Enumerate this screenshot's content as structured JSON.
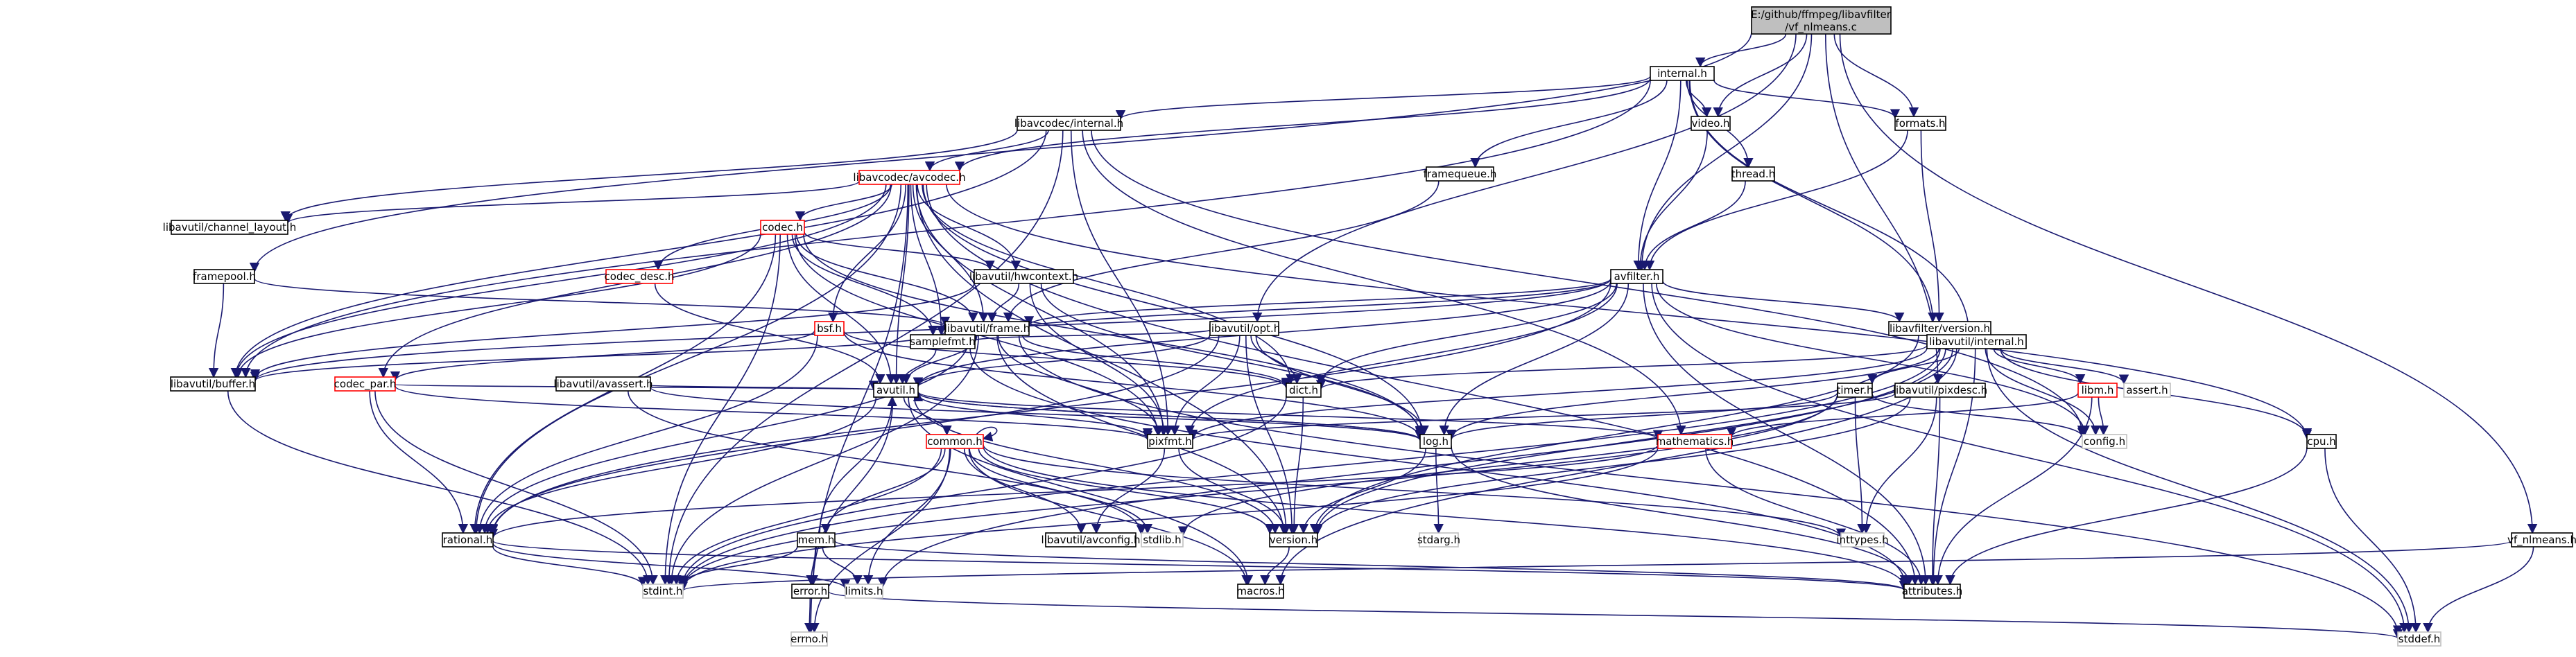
{
  "root": {
    "lines": [
      "E:/github/ffmpeg/libavfilter",
      "/vf_nlmeans.c"
    ]
  },
  "nodes": [
    {
      "id": "internal_h",
      "label": "internal.h",
      "style": "normal"
    },
    {
      "id": "video_h",
      "label": "video.h",
      "style": "normal"
    },
    {
      "id": "formats_h",
      "label": "formats.h",
      "style": "normal"
    },
    {
      "id": "lavc_internal_h",
      "label": "libavcodec/internal.h",
      "style": "normal"
    },
    {
      "id": "framequeue_h",
      "label": "framequeue.h",
      "style": "normal"
    },
    {
      "id": "thread_h",
      "label": "thread.h",
      "style": "normal"
    },
    {
      "id": "avcodec_h",
      "label": "libavcodec/avcodec.h",
      "style": "red"
    },
    {
      "id": "channel_layout_h",
      "label": "libavutil/channel_layout.h",
      "style": "normal"
    },
    {
      "id": "codec_h",
      "label": "codec.h",
      "style": "red"
    },
    {
      "id": "codec_desc_h",
      "label": "codec_desc.h",
      "style": "red"
    },
    {
      "id": "hwcontext_h",
      "label": "libavutil/hwcontext.h",
      "style": "normal"
    },
    {
      "id": "framepool_h",
      "label": "framepool.h",
      "style": "normal"
    },
    {
      "id": "avfilter_h",
      "label": "avfilter.h",
      "style": "normal"
    },
    {
      "id": "bsf_h",
      "label": "bsf.h",
      "style": "red"
    },
    {
      "id": "frame_h",
      "label": "libavutil/frame.h",
      "style": "normal"
    },
    {
      "id": "opt_h",
      "label": "libavutil/opt.h",
      "style": "normal"
    },
    {
      "id": "filter_version_h",
      "label": "libavfilter/version.h",
      "style": "normal"
    },
    {
      "id": "buffer_h",
      "label": "libavutil/buffer.h",
      "style": "normal"
    },
    {
      "id": "codec_par_h",
      "label": "codec_par.h",
      "style": "red"
    },
    {
      "id": "avassert_h",
      "label": "libavutil/avassert.h",
      "style": "normal"
    },
    {
      "id": "samplefmt_h",
      "label": "samplefmt.h",
      "style": "normal"
    },
    {
      "id": "avutil_h",
      "label": "avutil.h",
      "style": "normal"
    },
    {
      "id": "dict_h",
      "label": "dict.h",
      "style": "normal"
    },
    {
      "id": "util_internal_h",
      "label": "libavutil/internal.h",
      "style": "normal"
    },
    {
      "id": "timer_h",
      "label": "timer.h",
      "style": "normal"
    },
    {
      "id": "pixdesc_h",
      "label": "libavutil/pixdesc.h",
      "style": "normal"
    },
    {
      "id": "libm_h",
      "label": "libm.h",
      "style": "red"
    },
    {
      "id": "assert_h",
      "label": "assert.h",
      "style": "grey"
    },
    {
      "id": "common_h",
      "label": "common.h",
      "style": "red"
    },
    {
      "id": "pixfmt_h",
      "label": "pixfmt.h",
      "style": "normal"
    },
    {
      "id": "log_h",
      "label": "log.h",
      "style": "normal"
    },
    {
      "id": "mathematics_h",
      "label": "mathematics.h",
      "style": "red"
    },
    {
      "id": "config_h",
      "label": "config.h",
      "style": "grey"
    },
    {
      "id": "cpu_h",
      "label": "cpu.h",
      "style": "normal"
    },
    {
      "id": "rational_h",
      "label": "rational.h",
      "style": "normal"
    },
    {
      "id": "mem_h",
      "label": "mem.h",
      "style": "normal"
    },
    {
      "id": "avconfig_h",
      "label": "libavutil/avconfig.h",
      "style": "normal"
    },
    {
      "id": "stdlib_h",
      "label": "stdlib.h",
      "style": "grey"
    },
    {
      "id": "version_h",
      "label": "version.h",
      "style": "normal"
    },
    {
      "id": "stdarg_h",
      "label": "stdarg.h",
      "style": "grey"
    },
    {
      "id": "inttypes_h",
      "label": "inttypes.h",
      "style": "grey"
    },
    {
      "id": "vf_nlmeans_h",
      "label": "vf_nlmeans.h",
      "style": "normal"
    },
    {
      "id": "stdint_h",
      "label": "stdint.h",
      "style": "grey"
    },
    {
      "id": "error_h",
      "label": "error.h",
      "style": "normal"
    },
    {
      "id": "limits_h",
      "label": "limits.h",
      "style": "grey"
    },
    {
      "id": "macros_h",
      "label": "macros.h",
      "style": "normal"
    },
    {
      "id": "attributes_h",
      "label": "attributes.h",
      "style": "normal"
    },
    {
      "id": "errno_h",
      "label": "errno.h",
      "style": "grey"
    },
    {
      "id": "stddef_h",
      "label": "stddef.h",
      "style": "grey"
    }
  ],
  "edges": [
    [
      "root",
      "internal_h"
    ],
    [
      "root",
      "video_h"
    ],
    [
      "root",
      "formats_h"
    ],
    [
      "root",
      "avfilter_h"
    ],
    [
      "root",
      "opt_h"
    ],
    [
      "root",
      "pixdesc_h"
    ],
    [
      "root",
      "vf_nlmeans_h"
    ],
    [
      "root",
      "framepool_h"
    ],
    [
      "internal_h",
      "video_h"
    ],
    [
      "internal_h",
      "formats_h"
    ],
    [
      "internal_h",
      "lavc_internal_h"
    ],
    [
      "internal_h",
      "framequeue_h"
    ],
    [
      "internal_h",
      "thread_h"
    ],
    [
      "internal_h",
      "avfilter_h"
    ],
    [
      "internal_h",
      "avcodec_h"
    ],
    [
      "internal_h",
      "filter_version_h"
    ],
    [
      "internal_h",
      "util_internal_h"
    ],
    [
      "internal_h",
      "buffer_h"
    ],
    [
      "video_h",
      "avfilter_h"
    ],
    [
      "formats_h",
      "avfilter_h"
    ],
    [
      "formats_h",
      "filter_version_h"
    ],
    [
      "thread_h",
      "avfilter_h"
    ],
    [
      "framequeue_h",
      "frame_h"
    ],
    [
      "lavc_internal_h",
      "avcodec_h"
    ],
    [
      "lavc_internal_h",
      "channel_layout_h"
    ],
    [
      "lavc_internal_h",
      "buffer_h"
    ],
    [
      "lavc_internal_h",
      "pixfmt_h"
    ],
    [
      "lavc_internal_h",
      "mathematics_h"
    ],
    [
      "lavc_internal_h",
      "stdint_h"
    ],
    [
      "lavc_internal_h",
      "config_h"
    ],
    [
      "avcodec_h",
      "channel_layout_h"
    ],
    [
      "avcodec_h",
      "codec_h"
    ],
    [
      "avcodec_h",
      "codec_desc_h"
    ],
    [
      "avcodec_h",
      "hwcontext_h"
    ],
    [
      "avcodec_h",
      "bsf_h"
    ],
    [
      "avcodec_h",
      "frame_h"
    ],
    [
      "avcodec_h",
      "samplefmt_h"
    ],
    [
      "avcodec_h",
      "avutil_h"
    ],
    [
      "avcodec_h",
      "dict_h"
    ],
    [
      "avcodec_h",
      "pixfmt_h"
    ],
    [
      "avcodec_h",
      "log_h"
    ],
    [
      "avcodec_h",
      "codec_par_h"
    ],
    [
      "avcodec_h",
      "rational_h"
    ],
    [
      "avcodec_h",
      "attributes_h"
    ],
    [
      "avcodec_h",
      "cpu_h"
    ],
    [
      "avcodec_h",
      "errno_h"
    ],
    [
      "avcodec_h",
      "version_h"
    ],
    [
      "avcodec_h",
      "buffer_h"
    ],
    [
      "codec_h",
      "hwcontext_h"
    ],
    [
      "codec_h",
      "buffer_h"
    ],
    [
      "codec_h",
      "frame_h"
    ],
    [
      "codec_h",
      "samplefmt_h"
    ],
    [
      "codec_h",
      "avutil_h"
    ],
    [
      "codec_h",
      "log_h"
    ],
    [
      "codec_h",
      "pixfmt_h"
    ],
    [
      "codec_h",
      "rational_h"
    ],
    [
      "codec_h",
      "stdint_h"
    ],
    [
      "codec_desc_h",
      "avutil_h"
    ],
    [
      "hwcontext_h",
      "buffer_h"
    ],
    [
      "hwcontext_h",
      "frame_h"
    ],
    [
      "hwcontext_h",
      "log_h"
    ],
    [
      "hwcontext_h",
      "pixfmt_h"
    ],
    [
      "framepool_h",
      "buffer_h"
    ],
    [
      "framepool_h",
      "frame_h"
    ],
    [
      "avfilter_h",
      "frame_h"
    ],
    [
      "avfilter_h",
      "filter_version_h"
    ],
    [
      "avfilter_h",
      "avutil_h"
    ],
    [
      "avfilter_h",
      "buffer_h"
    ],
    [
      "avfilter_h",
      "dict_h"
    ],
    [
      "avfilter_h",
      "log_h"
    ],
    [
      "avfilter_h",
      "pixfmt_h"
    ],
    [
      "avfilter_h",
      "samplefmt_h"
    ],
    [
      "avfilter_h",
      "rational_h"
    ],
    [
      "avfilter_h",
      "attributes_h"
    ],
    [
      "avfilter_h",
      "stddef_h"
    ],
    [
      "avfilter_h",
      "config_h"
    ],
    [
      "bsf_h",
      "codec_par_h"
    ],
    [
      "bsf_h",
      "dict_h"
    ],
    [
      "bsf_h",
      "log_h"
    ],
    [
      "bsf_h",
      "rational_h"
    ],
    [
      "frame_h",
      "buffer_h"
    ],
    [
      "frame_h",
      "avutil_h"
    ],
    [
      "frame_h",
      "dict_h"
    ],
    [
      "frame_h",
      "rational_h"
    ],
    [
      "frame_h",
      "samplefmt_h"
    ],
    [
      "frame_h",
      "pixfmt_h"
    ],
    [
      "frame_h",
      "version_h"
    ],
    [
      "frame_h",
      "stdint_h"
    ],
    [
      "frame_h",
      "stddef_h"
    ],
    [
      "opt_h",
      "rational_h"
    ],
    [
      "opt_h",
      "avutil_h"
    ],
    [
      "opt_h",
      "dict_h"
    ],
    [
      "opt_h",
      "log_h"
    ],
    [
      "opt_h",
      "pixfmt_h"
    ],
    [
      "opt_h",
      "samplefmt_h"
    ],
    [
      "opt_h",
      "version_h"
    ],
    [
      "filter_version_h",
      "version_h"
    ],
    [
      "buffer_h",
      "stdint_h"
    ],
    [
      "codec_par_h",
      "avutil_h"
    ],
    [
      "codec_par_h",
      "rational_h"
    ],
    [
      "codec_par_h",
      "pixfmt_h"
    ],
    [
      "codec_par_h",
      "stdint_h"
    ],
    [
      "avassert_h",
      "stdlib_h"
    ],
    [
      "avassert_h",
      "avutil_h"
    ],
    [
      "avassert_h",
      "log_h"
    ],
    [
      "samplefmt_h",
      "avutil_h"
    ],
    [
      "samplefmt_h",
      "attributes_h"
    ],
    [
      "avutil_h",
      "common_h"
    ],
    [
      "avutil_h",
      "error_h"
    ],
    [
      "avutil_h",
      "version_h"
    ],
    [
      "avutil_h",
      "macros_h"
    ],
    [
      "avutil_h",
      "mathematics_h"
    ],
    [
      "avutil_h",
      "rational_h"
    ],
    [
      "avutil_h",
      "log_h"
    ],
    [
      "avutil_h",
      "pixfmt_h"
    ],
    [
      "dict_h",
      "stdint_h"
    ],
    [
      "dict_h",
      "version_h"
    ],
    [
      "util_internal_h",
      "timer_h"
    ],
    [
      "util_internal_h",
      "cpu_h"
    ],
    [
      "util_internal_h",
      "dict_h"
    ],
    [
      "util_internal_h",
      "pixfmt_h"
    ],
    [
      "util_internal_h",
      "libm_h"
    ],
    [
      "util_internal_h",
      "assert_h"
    ],
    [
      "util_internal_h",
      "config_h"
    ],
    [
      "util_internal_h",
      "attributes_h"
    ],
    [
      "util_internal_h",
      "macros_h"
    ],
    [
      "util_internal_h",
      "log_h"
    ],
    [
      "util_internal_h",
      "version_h"
    ],
    [
      "util_internal_h",
      "stdint_h"
    ],
    [
      "util_internal_h",
      "stddef_h"
    ],
    [
      "util_internal_h",
      "limits_h"
    ],
    [
      "timer_h",
      "config_h"
    ],
    [
      "timer_h",
      "inttypes_h"
    ],
    [
      "timer_h",
      "log_h"
    ],
    [
      "timer_h",
      "stdlib_h"
    ],
    [
      "timer_h",
      "stdint_h"
    ],
    [
      "pixdesc_h",
      "inttypes_h"
    ],
    [
      "pixdesc_h",
      "attributes_h"
    ],
    [
      "pixdesc_h",
      "pixfmt_h"
    ],
    [
      "pixdesc_h",
      "version_h"
    ],
    [
      "libm_h",
      "config_h"
    ],
    [
      "libm_h",
      "attributes_h"
    ],
    [
      "libm_h",
      "mathematics_h"
    ],
    [
      "libm_h",
      "intfloat_na"
    ],
    [
      "common_h",
      "errno_h"
    ],
    [
      "common_h",
      "inttypes_h"
    ],
    [
      "common_h",
      "limits_h"
    ],
    [
      "common_h",
      "stdint_h"
    ],
    [
      "common_h",
      "stdlib_h"
    ],
    [
      "common_h",
      "attributes_h"
    ],
    [
      "common_h",
      "macros_h"
    ],
    [
      "common_h",
      "version_h"
    ],
    [
      "common_h",
      "avconfig_h"
    ],
    [
      "common_h",
      "mem_h"
    ],
    [
      "common_h",
      "common_h"
    ],
    [
      "pixfmt_h",
      "version_h"
    ],
    [
      "pixfmt_h",
      "avconfig_h"
    ],
    [
      "log_h",
      "stdarg_h"
    ],
    [
      "log_h",
      "attributes_h"
    ],
    [
      "log_h",
      "version_h"
    ],
    [
      "log_h",
      "avutil_h"
    ],
    [
      "mathematics_h",
      "stdint_h"
    ],
    [
      "mathematics_h",
      "attributes_h"
    ],
    [
      "mathematics_h",
      "rational_h"
    ],
    [
      "mathematics_h",
      "intfloat_na"
    ],
    [
      "cpu_h",
      "stddef_h"
    ],
    [
      "cpu_h",
      "attributes_h"
    ],
    [
      "rational_h",
      "stdint_h"
    ],
    [
      "rational_h",
      "limits_h"
    ],
    [
      "rational_h",
      "attributes_h"
    ],
    [
      "mem_h",
      "limits_h"
    ],
    [
      "mem_h",
      "stdint_h"
    ],
    [
      "mem_h",
      "attributes_h"
    ],
    [
      "mem_h",
      "error_h"
    ],
    [
      "mem_h",
      "avutil_h"
    ],
    [
      "version_h",
      "macros_h"
    ],
    [
      "error_h",
      "errno_h"
    ],
    [
      "error_h",
      "stddef_h"
    ],
    [
      "vf_nlmeans_h",
      "stdint_h"
    ],
    [
      "vf_nlmeans_h",
      "stddef_h"
    ]
  ]
}
